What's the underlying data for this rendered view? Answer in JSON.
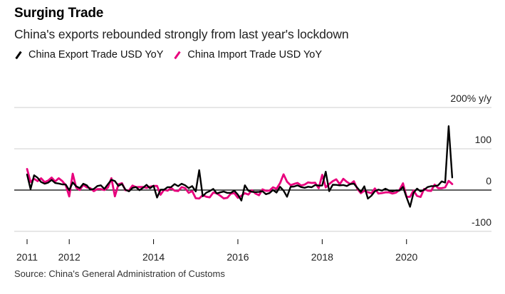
{
  "header": {
    "title": "Surging Trade",
    "subtitle": "China's exports rebounded strongly from last year's lockdown"
  },
  "legend": {
    "items": [
      {
        "label": "China Export Trade USD YoY",
        "color": "#000000"
      },
      {
        "label": "China Import Trade USD YoY",
        "color": "#e8007d"
      }
    ]
  },
  "footer": {
    "source": "Source: China's General Administration of Customs"
  },
  "chart_data": {
    "type": "line",
    "title": "Surging Trade",
    "subtitle": "China's exports rebounded strongly from last year's lockdown",
    "ylabel_unit": "% y/y",
    "y_tick_labels": [
      "200% y/y",
      "100",
      "0",
      "-100"
    ],
    "y_ticks": [
      200,
      100,
      0,
      -100
    ],
    "ylim": [
      -120,
      200
    ],
    "x_tick_labels": [
      "2011",
      "2012",
      "2014",
      "2016",
      "2018",
      "2020"
    ],
    "x_ticks": [
      2011,
      2012,
      2014,
      2016,
      2018,
      2020
    ],
    "xlim": [
      2011.0,
      2021.17
    ],
    "grid": "horizontal",
    "legend_position": "top-left",
    "x_start": "2011-01",
    "frequency": "monthly",
    "series": [
      {
        "name": "China Export Trade USD YoY",
        "color": "#000000",
        "values": [
          37.7,
          2.4,
          35.8,
          29.9,
          19.4,
          15.3,
          17.9,
          24.5,
          17.1,
          15.9,
          13.8,
          13.4,
          -0.5,
          18.4,
          8.9,
          4.9,
          15.3,
          11.3,
          1.0,
          2.7,
          9.9,
          11.6,
          2.9,
          14.1,
          25.0,
          21.8,
          10.1,
          14.7,
          1.0,
          -3.1,
          5.1,
          7.2,
          -0.3,
          5.6,
          12.7,
          4.3,
          10.6,
          -18.1,
          0.9,
          0.9,
          7.0,
          7.2,
          14.5,
          9.4,
          15.3,
          11.6,
          4.7,
          9.7,
          -3.3,
          48.3,
          -15.0,
          -6.4,
          -2.5,
          2.8,
          -8.3,
          -5.5,
          -3.7,
          -6.9,
          -6.8,
          -1.4,
          -11.2,
          -25.4,
          11.5,
          -1.8,
          -4.1,
          -4.8,
          -4.4,
          -2.8,
          -10.0,
          -7.3,
          0.1,
          -6.1,
          7.9,
          -1.3,
          -16.2,
          8.0,
          8.7,
          11.3,
          7.2,
          5.5,
          8.1,
          6.9,
          12.3,
          10.9,
          11.1,
          44.5,
          -2.7,
          12.9,
          12.6,
          11.3,
          12.2,
          9.8,
          14.5,
          15.6,
          5.4,
          -4.4,
          9.1,
          -20.7,
          -13.8,
          -2.7,
          1.1,
          -1.3,
          3.3,
          -1.0,
          -3.2,
          -0.9,
          -1.1,
          7.6,
          -17.2,
          -40.6,
          -6.6,
          3.5,
          -3.3,
          0.5,
          7.2,
          9.5,
          9.9,
          11.4,
          21.1,
          18.1,
          154.9,
          30.6
        ]
      },
      {
        "name": "China Import Trade USD YoY",
        "color": "#e8007d",
        "values": [
          51.0,
          19.4,
          27.3,
          21.8,
          28.4,
          19.3,
          22.9,
          30.2,
          20.9,
          28.7,
          22.1,
          11.8,
          -15.3,
          39.6,
          5.3,
          0.3,
          12.7,
          6.3,
          4.7,
          -2.6,
          2.4,
          2.4,
          0.0,
          6.0,
          28.8,
          -15.2,
          14.1,
          16.8,
          -0.3,
          -0.7,
          10.9,
          7.0,
          7.4,
          7.6,
          5.3,
          8.3,
          10.0,
          10.1,
          -11.3,
          0.8,
          -1.6,
          5.5,
          -1.6,
          -2.4,
          7.0,
          4.6,
          -6.7,
          -2.4,
          -19.9,
          -20.5,
          -12.3,
          -16.2,
          -17.6,
          -6.1,
          -8.1,
          -13.8,
          -20.4,
          -18.8,
          -8.7,
          -7.6,
          -18.8,
          -13.8,
          -7.6,
          -10.9,
          -0.4,
          -8.4,
          -12.5,
          1.5,
          -1.9,
          -1.4,
          6.7,
          3.1,
          16.7,
          38.1,
          20.3,
          11.9,
          14.8,
          17.2,
          11.0,
          13.3,
          18.7,
          17.2,
          17.7,
          4.5,
          36.9,
          6.3,
          14.4,
          21.5,
          26.0,
          14.1,
          27.3,
          20.0,
          14.3,
          21.4,
          3.0,
          -7.6,
          -1.5,
          -5.2,
          -7.6,
          4.0,
          -8.5,
          -7.3,
          -5.6,
          -5.6,
          -8.5,
          -6.4,
          0.3,
          16.3,
          -16.4,
          -16.4,
          -1.0,
          -14.2,
          -16.7,
          2.7,
          -1.4,
          -2.1,
          13.2,
          4.7,
          4.5,
          6.5,
          22.2,
          14.5
        ]
      }
    ]
  }
}
